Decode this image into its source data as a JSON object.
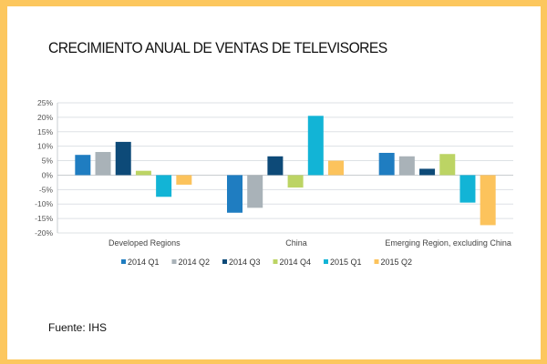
{
  "title": "CRECIMIENTO ANUAL DE VENTAS DE TELEVISORES",
  "source": "Fuente: IHS",
  "chart_data": {
    "type": "bar",
    "title": "CRECIMIENTO ANUAL DE VENTAS DE TELEVISORES",
    "categories": [
      "Developed Regions",
      "China",
      "Emerging Region, excluding China"
    ],
    "ylim": [
      -20,
      25
    ],
    "yticks": [
      "-20%",
      "-15%",
      "-10%",
      "-5%",
      "0%",
      "5%",
      "10%",
      "15%",
      "20%",
      "25%"
    ],
    "grid": true,
    "legend_position": "bottom",
    "series": [
      {
        "name": "2014 Q1",
        "color": "#1f7dc1",
        "values": [
          7.0,
          -13.0,
          7.7
        ]
      },
      {
        "name": "2014 Q2",
        "color": "#a9b2b8",
        "values": [
          8.0,
          -11.3,
          6.5
        ]
      },
      {
        "name": "2014 Q3",
        "color": "#0d4a78",
        "values": [
          11.5,
          6.5,
          2.2
        ]
      },
      {
        "name": "2014 Q4",
        "color": "#bcd464",
        "values": [
          1.5,
          -4.3,
          7.3
        ]
      },
      {
        "name": "2015 Q1",
        "color": "#12b4d6",
        "values": [
          -7.5,
          20.5,
          -9.5
        ]
      },
      {
        "name": "2015 Q2",
        "color": "#fcc35c",
        "values": [
          -3.3,
          5.0,
          -17.3
        ]
      }
    ]
  }
}
